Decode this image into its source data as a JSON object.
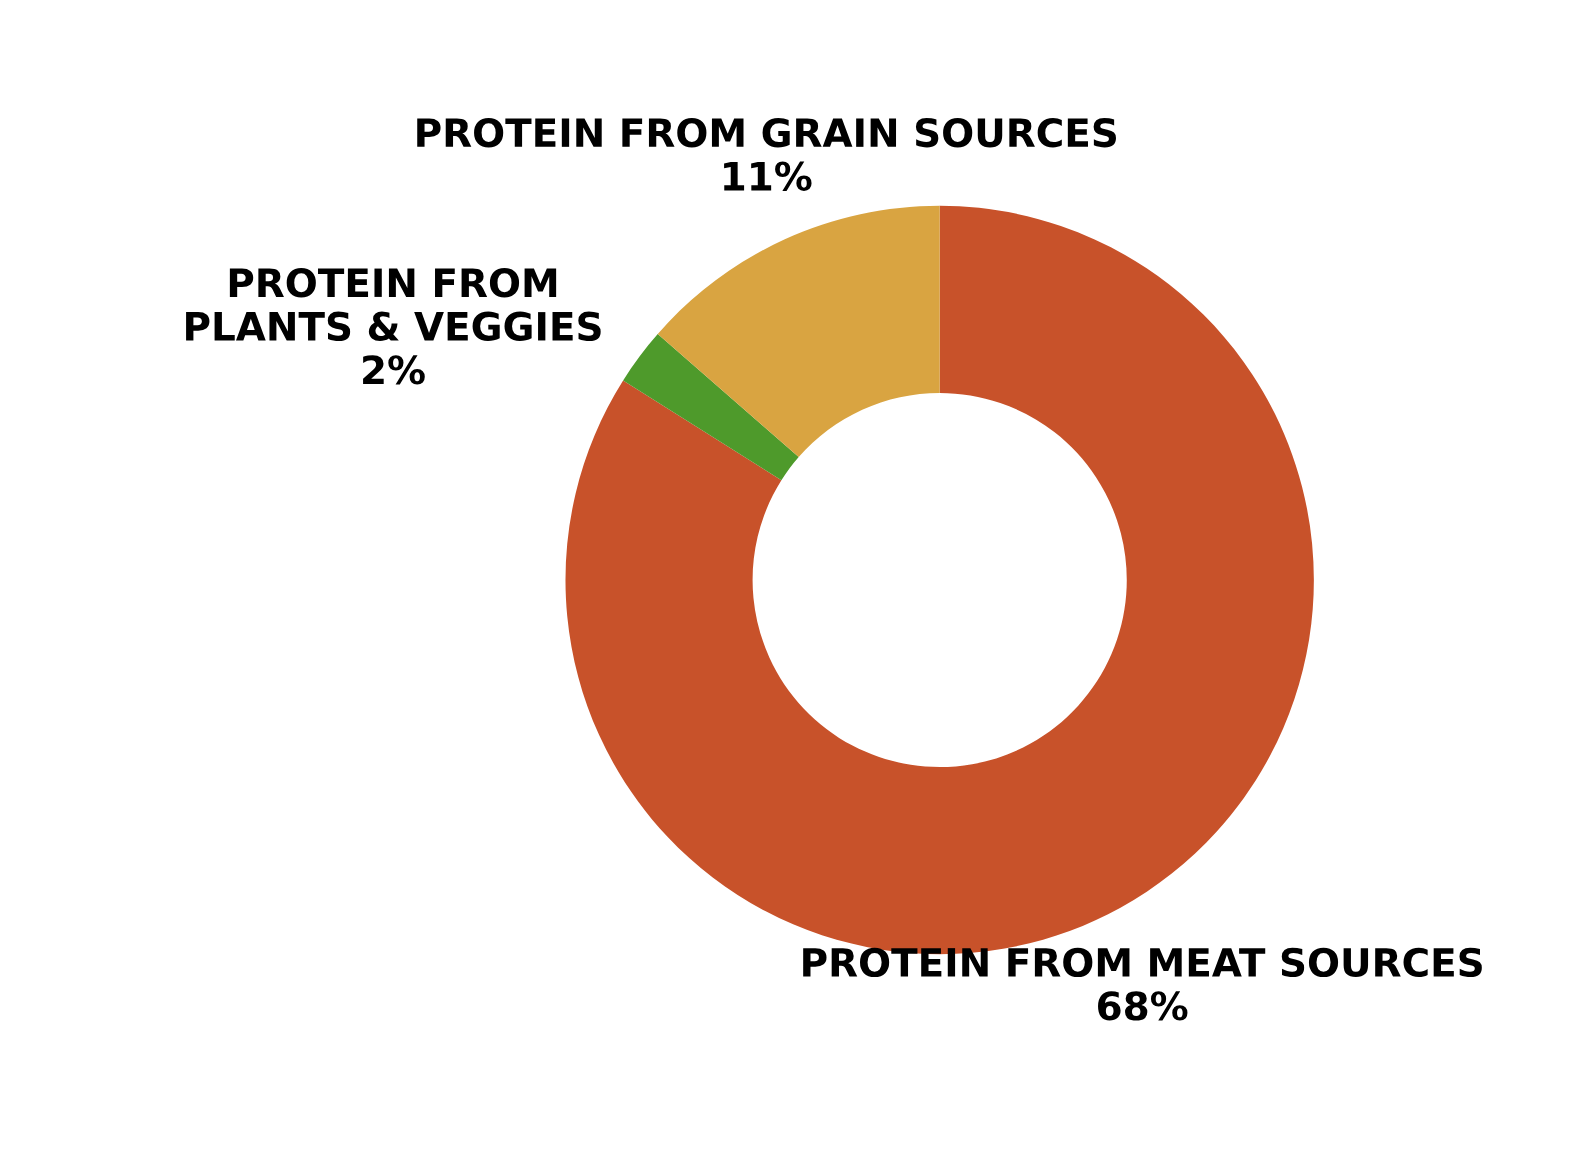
{
  "chart_data": {
    "type": "donut",
    "categories": [
      "PROTEIN FROM MEAT SOURCES",
      "PROTEIN FROM\nPLANTS & VEGGIES",
      "PROTEIN FROM GRAIN SOURCES"
    ],
    "values": [
      68,
      2,
      11
    ],
    "value_labels": [
      "68%",
      "2%",
      "11%"
    ],
    "colors": [
      "#c8522a",
      "#4e9a2b",
      "#d9a441"
    ]
  }
}
